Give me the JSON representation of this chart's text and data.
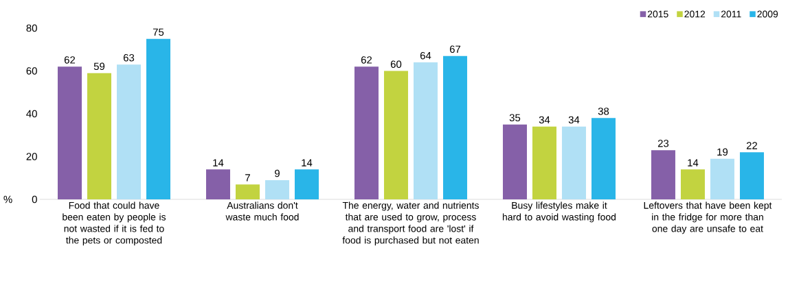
{
  "chart_data": {
    "type": "bar",
    "categories": [
      "Food that could have been eaten by people is not wasted if it is fed to the pets or composted",
      "Australians don't waste much food",
      "The energy, water and nutrients that are used to grow, process and transport food are 'lost' if food is purchased but not eaten",
      "Busy lifestyles make it hard to avoid wasting food",
      "Leftovers that have been kept in the fridge for more than one day are unsafe to eat"
    ],
    "series": [
      {
        "name": "2015",
        "color": "#8560a8",
        "values": [
          62,
          14,
          62,
          35,
          23
        ]
      },
      {
        "name": "2012",
        "color": "#c2d340",
        "values": [
          59,
          7,
          60,
          34,
          14
        ]
      },
      {
        "name": "2011",
        "color": "#b0e0f5",
        "values": [
          63,
          9,
          64,
          34,
          19
        ]
      },
      {
        "name": "2009",
        "color": "#29b5e8",
        "values": [
          75,
          14,
          67,
          38,
          22
        ]
      }
    ],
    "ylabel": "%",
    "ylim": [
      0,
      80
    ],
    "yticks": [
      0,
      20,
      40,
      60,
      80
    ],
    "data_labels": true,
    "legend": "top right"
  }
}
